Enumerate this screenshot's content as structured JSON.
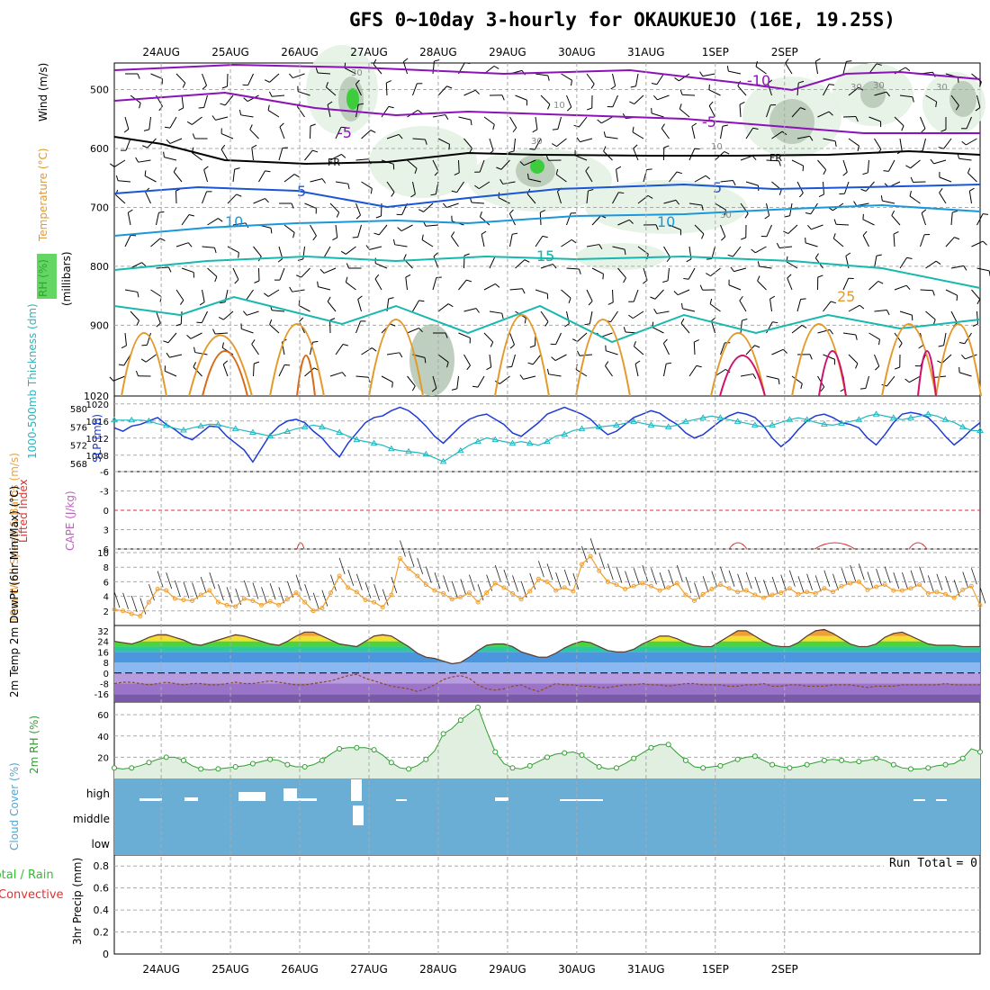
{
  "title": "GFS 0~10day 3-hourly for OKAUKUEJO (16E, 19.25S)",
  "run_total": {
    "label": "Run Total",
    "value": "= 0"
  },
  "colors": {
    "rh_green": "#3ccc3c",
    "temp_purple": "#8b12b8",
    "temp_blue": "#1a55d6",
    "temp_sky": "#1a96dc",
    "temp_teal": "#16b8b0",
    "temp_orange": "#e39a2a",
    "temp_darkorange": "#d96a16",
    "temp_magenta": "#d0106e",
    "slp_line": "#1e3ad4",
    "thickness_line": "#22b8c0",
    "wind10m_line": "#f0a030",
    "cloud_bg": "#6aaed6",
    "rh2m_line": "#2e9e2e",
    "li_line": "#e03030",
    "cape_label": "#c060c0"
  },
  "chart_data": [
    {
      "panel": "upper-air",
      "type": "contour",
      "ylabel": "(millibars)",
      "yticks": [
        500,
        600,
        700,
        800,
        900,
        1020
      ],
      "xticks": [
        "24AUG",
        "25AUG",
        "26AUG",
        "27AUG",
        "28AUG",
        "29AUG",
        "30AUG",
        "31AUG",
        "1SEP",
        "2SEP"
      ],
      "legend": [
        "Wind (m/s)",
        "Temperature (°C)",
        "RH (%)"
      ],
      "contour_labels": [
        "-10",
        "-5",
        "-5",
        "5",
        "5",
        "10",
        "10",
        "15",
        "15",
        "25",
        "FR",
        "FR"
      ],
      "rh_shading_labels": [
        "30",
        "10",
        "30",
        "10",
        "30",
        "30",
        "30",
        "30"
      ]
    },
    {
      "panel": "slp-thickness",
      "type": "line",
      "left_ylabel": "1000-500mb Thickness (dm)",
      "right_ylabel": "SLP (mb)",
      "left_yticks": [
        568,
        572,
        576,
        580
      ],
      "right_yticks": [
        1008,
        1012,
        1016,
        1020
      ],
      "series": [
        {
          "name": "SLP (mb)",
          "values": [
            1014.4,
            1013.6,
            1014.8,
            1015.2,
            1016.0,
            1016.8,
            1015.2,
            1014.0,
            1012.4,
            1011.6,
            1013.2,
            1014.8,
            1014.6,
            1012.4,
            1010.8,
            1009.2,
            1006.4,
            1009.6,
            1012.8,
            1014.8,
            1016.0,
            1016.4,
            1015.6,
            1013.6,
            1012.0,
            1009.6,
            1007.6,
            1010.8,
            1013.2,
            1015.6,
            1016.8,
            1017.2,
            1018.4,
            1019.2,
            1018.4,
            1016.8,
            1014.8,
            1012.4,
            1010.8,
            1012.8,
            1014.8,
            1016.4,
            1017.2,
            1017.6,
            1016.4,
            1015.2,
            1013.2,
            1012.4,
            1014.0,
            1015.6,
            1017.6,
            1018.4,
            1019.2,
            1018.4,
            1017.6,
            1016.4,
            1014.4,
            1012.8,
            1013.6,
            1015.2,
            1016.8,
            1017.6,
            1018.4,
            1017.8,
            1016.4,
            1015.2,
            1013.2,
            1012.0,
            1012.8,
            1014.4,
            1016.0,
            1017.2,
            1018.0,
            1017.6,
            1016.8,
            1014.8,
            1012.0,
            1010.0,
            1011.6,
            1014.0,
            1016.0,
            1017.2,
            1017.6,
            1016.8,
            1015.6,
            1015.2,
            1014.4,
            1012.0,
            1010.4,
            1012.8,
            1015.6,
            1017.6,
            1018.0,
            1017.6,
            1016.8,
            1014.8,
            1012.4,
            1010.4,
            1012.0,
            1014.0,
            1015.6
          ]
        },
        {
          "name": "1000-500mb Thickness (dm)",
          "values": [
            577.5,
            577.5,
            577.5,
            577.5,
            577.3,
            576.7,
            576.3,
            575.7,
            575.3,
            575.8,
            576.2,
            576.6,
            576.5,
            576.0,
            575.6,
            575.2,
            574.8,
            574.4,
            574.0,
            574.4,
            575.0,
            575.6,
            576.0,
            576.4,
            576.0,
            575.4,
            574.8,
            574.0,
            573.2,
            572.8,
            572.4,
            572.0,
            571.2,
            570.8,
            570.6,
            570.4,
            570.0,
            569.2,
            568.4,
            569.6,
            570.8,
            572.0,
            572.8,
            573.6,
            573.2,
            572.8,
            572.4,
            572.8,
            572.4,
            572.0,
            572.8,
            574.0,
            574.4,
            575.2,
            575.6,
            575.8,
            576.0,
            576.2,
            576.4,
            576.8,
            577.2,
            576.8,
            576.4,
            576.2,
            576.0,
            576.4,
            577.2,
            577.6,
            578.0,
            578.4,
            578.0,
            577.6,
            577.2,
            576.8,
            576.4,
            576.0,
            576.4,
            577.0,
            577.6,
            578.0,
            577.6,
            577.0,
            576.6,
            576.4,
            576.8,
            577.2,
            577.6,
            578.4,
            578.8,
            578.4,
            578.0,
            577.6,
            578.0,
            578.4,
            578.8,
            578.4,
            577.6,
            577.0,
            576.0,
            575.2,
            575.2
          ]
        }
      ]
    },
    {
      "panel": "lifted-index-cape",
      "type": "line",
      "left_ylabel": "Lifted Index",
      "right_ylabel": "CAPE (J/kg)",
      "yticks": [
        -6,
        -3,
        0,
        3,
        6
      ]
    },
    {
      "panel": "10m-wind",
      "type": "line",
      "ylabel": "10m Wind Speed & Barbs (m/s)",
      "yticks": [
        2,
        4,
        6,
        8,
        10
      ],
      "series": [
        {
          "name": "10m Wind Speed (m/s)",
          "values": [
            2.2,
            2.0,
            1.6,
            1.3,
            3.2,
            5.0,
            4.8,
            3.7,
            3.5,
            3.4,
            4.2,
            4.8,
            3.2,
            2.8,
            2.6,
            3.7,
            3.4,
            2.8,
            3.3,
            2.8,
            3.6,
            4.5,
            3.2,
            2.0,
            2.4,
            4.5,
            6.8,
            5.2,
            4.6,
            3.5,
            3.2,
            2.5,
            4.2,
            9.2,
            7.8,
            6.8,
            5.6,
            4.8,
            4.4,
            3.6,
            3.9,
            4.5,
            3.2,
            4.5,
            5.8,
            5.2,
            4.4,
            3.6,
            4.7,
            6.4,
            6.0,
            4.8,
            5.2,
            4.7,
            8.4,
            9.5,
            7.5,
            6.0,
            5.6,
            5.0,
            5.4,
            5.8,
            5.4,
            4.8,
            5.2,
            5.8,
            4.2,
            3.4,
            4.3,
            5.0,
            5.6,
            5.1,
            4.6,
            4.8,
            4.2,
            3.8,
            4.2,
            4.5,
            5.1,
            4.3,
            4.6,
            4.4,
            5.1,
            4.6,
            5.4,
            5.8,
            6.0,
            4.9,
            5.3,
            5.6,
            4.8,
            4.8,
            5.1,
            5.6,
            4.4,
            4.6,
            4.3,
            3.8,
            4.9,
            5.4,
            2.8
          ]
        }
      ]
    },
    {
      "panel": "2m-temp",
      "type": "area",
      "ylabel": "2m Temp 2m DewPt (6hr Min/Max) (°C)",
      "yticks": [
        -16,
        -8,
        0,
        8,
        16,
        24,
        32
      ],
      "series": [
        {
          "name": "2m Temp (°C)",
          "values": [
            24,
            23,
            22,
            24,
            27,
            29,
            29,
            27,
            25,
            22,
            21,
            23,
            25,
            27,
            29,
            28,
            26,
            24,
            22,
            21,
            24,
            28,
            31,
            31,
            28,
            25,
            22,
            21,
            20,
            24,
            28,
            29,
            28,
            24,
            20,
            15,
            12,
            11,
            9,
            7,
            8,
            12,
            17,
            21,
            22,
            22,
            20,
            16,
            14,
            12,
            12,
            15,
            19,
            22,
            24,
            23,
            20,
            17,
            16,
            16,
            18,
            22,
            25,
            28,
            28,
            26,
            23,
            21,
            20,
            20,
            24,
            28,
            32,
            32,
            28,
            24,
            21,
            20,
            20,
            23,
            28,
            32,
            33,
            30,
            26,
            22,
            20,
            20,
            22,
            27,
            30,
            31,
            28,
            25,
            22,
            21,
            21,
            21,
            20,
            20,
            20
          ]
        },
        {
          "name": "2m DewPt (°C)",
          "values": [
            -8,
            -7,
            -7,
            -8,
            -9,
            -8,
            -7,
            -8,
            -9,
            -8,
            -8,
            -9,
            -9,
            -8,
            -7,
            -8,
            -8,
            -7,
            -6,
            -7,
            -8,
            -9,
            -9,
            -8,
            -7,
            -6,
            -4,
            -2,
            -1,
            -4,
            -6,
            -8,
            -10,
            -11,
            -12,
            -14,
            -12,
            -9,
            -5,
            -3,
            -2,
            -4,
            -9,
            -12,
            -13,
            -12,
            -10,
            -9,
            -12,
            -14,
            -11,
            -8,
            -9,
            -9,
            -10,
            -10,
            -11,
            -11,
            -10,
            -9,
            -9,
            -8,
            -9,
            -9,
            -10,
            -9,
            -8,
            -8,
            -9,
            -9,
            -9,
            -10,
            -10,
            -9,
            -9,
            -8,
            -10,
            -10,
            -9,
            -9,
            -10,
            -10,
            -10,
            -9,
            -9,
            -9,
            -10,
            -11,
            -10,
            -10,
            -10,
            -9,
            -9,
            -9,
            -9,
            -9,
            -8,
            -9,
            -9,
            -9,
            -9
          ]
        }
      ]
    },
    {
      "panel": "2m-rh",
      "type": "area",
      "ylabel": "2m RH (%)",
      "yticks": [
        20,
        40,
        60
      ],
      "series": [
        {
          "name": "2m RH (%)",
          "values": [
            10,
            9,
            10,
            12,
            15,
            18,
            20,
            20,
            17,
            12,
            9,
            8,
            9,
            10,
            11,
            12,
            14,
            16,
            18,
            17,
            13,
            11,
            11,
            13,
            17,
            23,
            28,
            29,
            29,
            29,
            27,
            22,
            15,
            10,
            9,
            12,
            18,
            26,
            42,
            47,
            55,
            61,
            67,
            45,
            25,
            14,
            10,
            9,
            12,
            16,
            20,
            23,
            24,
            25,
            22,
            16,
            11,
            9,
            10,
            14,
            19,
            24,
            29,
            32,
            32,
            24,
            17,
            11,
            10,
            11,
            12,
            15,
            18,
            20,
            21,
            17,
            13,
            11,
            10,
            11,
            13,
            15,
            17,
            18,
            17,
            15,
            16,
            17,
            19,
            17,
            13,
            10,
            9,
            9,
            10,
            12,
            13,
            14,
            19,
            28,
            25
          ]
        }
      ]
    },
    {
      "panel": "cloud-cover",
      "type": "bar",
      "ylabel": "Cloud Cover (%)",
      "yticks": [
        "high",
        "middle",
        "low"
      ]
    },
    {
      "panel": "precip",
      "type": "bar",
      "left_ylabel": "3hr Precip (mm)",
      "legend": [
        "Total / Rain",
        "Convective"
      ],
      "yticks": [
        0,
        0.2,
        0.4,
        0.6,
        0.8
      ],
      "series": [
        {
          "name": "3hr Precip (mm)",
          "values": []
        }
      ]
    }
  ],
  "bottom_xticks": [
    "24AUG",
    "25AUG",
    "26AUG",
    "27AUG",
    "28AUG",
    "29AUG",
    "30AUG",
    "31AUG",
    "1SEP",
    "2SEP"
  ]
}
